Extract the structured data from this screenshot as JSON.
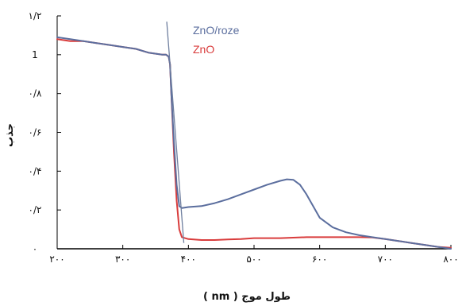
{
  "chart_data": {
    "type": "line",
    "xlabel": "طول موج ( nm )",
    "ylabel": "جذب",
    "xlim": [
      200,
      800
    ],
    "ylim": [
      0,
      1.2
    ],
    "x_ticks": [
      200,
      300,
      400,
      500,
      600,
      700,
      800
    ],
    "x_tick_labels": [
      "۲۰۰",
      "۳۰۰",
      "۴۰۰",
      "۵۰۰",
      "۶۰۰",
      "۷۰۰",
      "۸۰۰"
    ],
    "y_ticks": [
      0,
      0.2,
      0.4,
      0.6,
      0.8,
      1.0,
      1.2
    ],
    "y_tick_labels": [
      "۰",
      "۰/۲",
      "۰/۴",
      "۰/۶",
      "۰/۸",
      "1",
      "۱/۲"
    ],
    "grid": false,
    "legend_position": "top-right",
    "colors": {
      "ZnO/roze": "#5b6e9e",
      "ZnO": "#d93c3c"
    },
    "series": [
      {
        "name": "ZnO/roze",
        "x": [
          200,
          220,
          240,
          260,
          280,
          300,
          320,
          340,
          360,
          366,
          370,
          372,
          374,
          378,
          382,
          386,
          390,
          400,
          420,
          440,
          460,
          480,
          500,
          520,
          540,
          550,
          560,
          570,
          580,
          590,
          600,
          620,
          640,
          660,
          680,
          700,
          720,
          740,
          760,
          780,
          800
        ],
        "y": [
          1.09,
          1.08,
          1.07,
          1.06,
          1.05,
          1.04,
          1.03,
          1.01,
          1.0,
          1.0,
          0.99,
          0.95,
          0.8,
          0.55,
          0.33,
          0.22,
          0.21,
          0.215,
          0.22,
          0.235,
          0.255,
          0.28,
          0.305,
          0.33,
          0.35,
          0.358,
          0.355,
          0.33,
          0.28,
          0.22,
          0.16,
          0.11,
          0.085,
          0.07,
          0.06,
          0.05,
          0.04,
          0.03,
          0.02,
          0.01,
          0.0
        ]
      },
      {
        "name": "ZnO",
        "x": [
          200,
          220,
          240,
          260,
          280,
          300,
          320,
          340,
          360,
          366,
          370,
          372,
          374,
          378,
          382,
          386,
          390,
          400,
          420,
          440,
          460,
          480,
          500,
          540,
          580,
          620,
          660,
          680,
          700,
          720,
          740,
          760,
          780,
          800
        ],
        "y": [
          1.08,
          1.07,
          1.07,
          1.06,
          1.05,
          1.04,
          1.03,
          1.01,
          1.0,
          1.0,
          0.99,
          0.95,
          0.8,
          0.5,
          0.25,
          0.1,
          0.06,
          0.05,
          0.045,
          0.045,
          0.048,
          0.05,
          0.055,
          0.055,
          0.06,
          0.06,
          0.06,
          0.058,
          0.05,
          0.04,
          0.03,
          0.02,
          0.01,
          0.005
        ]
      }
    ],
    "annotation_line": {
      "from": [
        367,
        1.17
      ],
      "to": [
        393,
        0.03
      ],
      "color": "#6f7f9f"
    }
  }
}
